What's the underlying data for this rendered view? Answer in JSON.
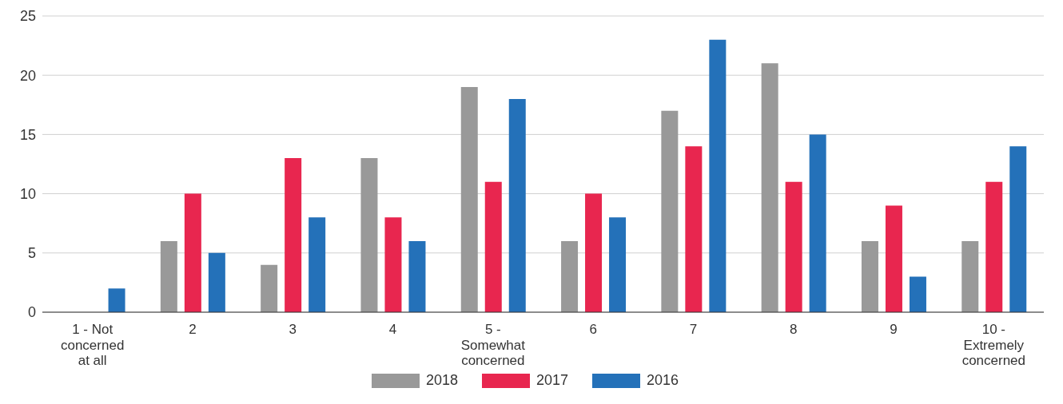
{
  "chart_data": {
    "type": "bar",
    "categories": [
      "1 - Not concerned at all",
      "2",
      "3",
      "4",
      "5 - Somewhat concerned",
      "6",
      "7",
      "8",
      "9",
      "10 - Extremely concerned"
    ],
    "series": [
      {
        "name": "2018",
        "color": "#999999",
        "values": [
          0,
          6,
          4,
          13,
          19,
          6,
          17,
          21,
          6,
          6
        ]
      },
      {
        "name": "2017",
        "color": "#e8264f",
        "values": [
          0,
          10,
          13,
          8,
          11,
          10,
          14,
          11,
          9,
          11
        ]
      },
      {
        "name": "2016",
        "color": "#2471b9",
        "values": [
          2,
          5,
          8,
          6,
          18,
          8,
          23,
          15,
          3,
          14
        ]
      }
    ],
    "ylim": [
      0,
      25
    ],
    "yticks": [
      0,
      5,
      10,
      15,
      20,
      25
    ],
    "grid": "y",
    "legend": "bottom"
  }
}
